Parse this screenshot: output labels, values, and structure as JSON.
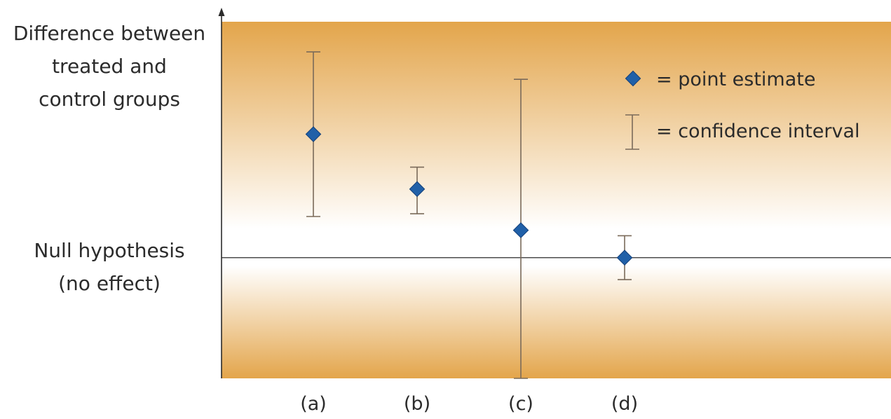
{
  "chart_data": {
    "type": "scatter",
    "title": "",
    "xlabel": "",
    "ylabel": "",
    "categories": [
      "(a)",
      "(b)",
      "(c)",
      "(d)"
    ],
    "y_axis_labels": {
      "top": [
        "Difference between",
        "treated and",
        "control groups"
      ],
      "reference": [
        "Null hypothesis",
        "(no effect)"
      ]
    },
    "reference_value": 0,
    "ylim": [
      -4.4,
      8.6
    ],
    "points": [
      {
        "category": "(a)",
        "estimate": 4.5,
        "ci_low": 1.5,
        "ci_high": 7.5
      },
      {
        "category": "(b)",
        "estimate": 2.5,
        "ci_low": 1.6,
        "ci_high": 3.3
      },
      {
        "category": "(c)",
        "estimate": 1.0,
        "ci_low": -4.4,
        "ci_high": 6.5
      },
      {
        "category": "(d)",
        "estimate": 0.0,
        "ci_low": -0.8,
        "ci_high": 0.8
      }
    ],
    "legend": {
      "placement": "top-right",
      "point_label": "= point estimate",
      "interval_label": "= confidence interval"
    },
    "colors": {
      "background_edge": "#e3a54b",
      "background_center": "#ffffff",
      "marker_fill": "#2060a8",
      "marker_stroke": "#14407a",
      "error_bar": "#7a6a5a",
      "axis": "#2b2b2b"
    },
    "grid": false
  }
}
